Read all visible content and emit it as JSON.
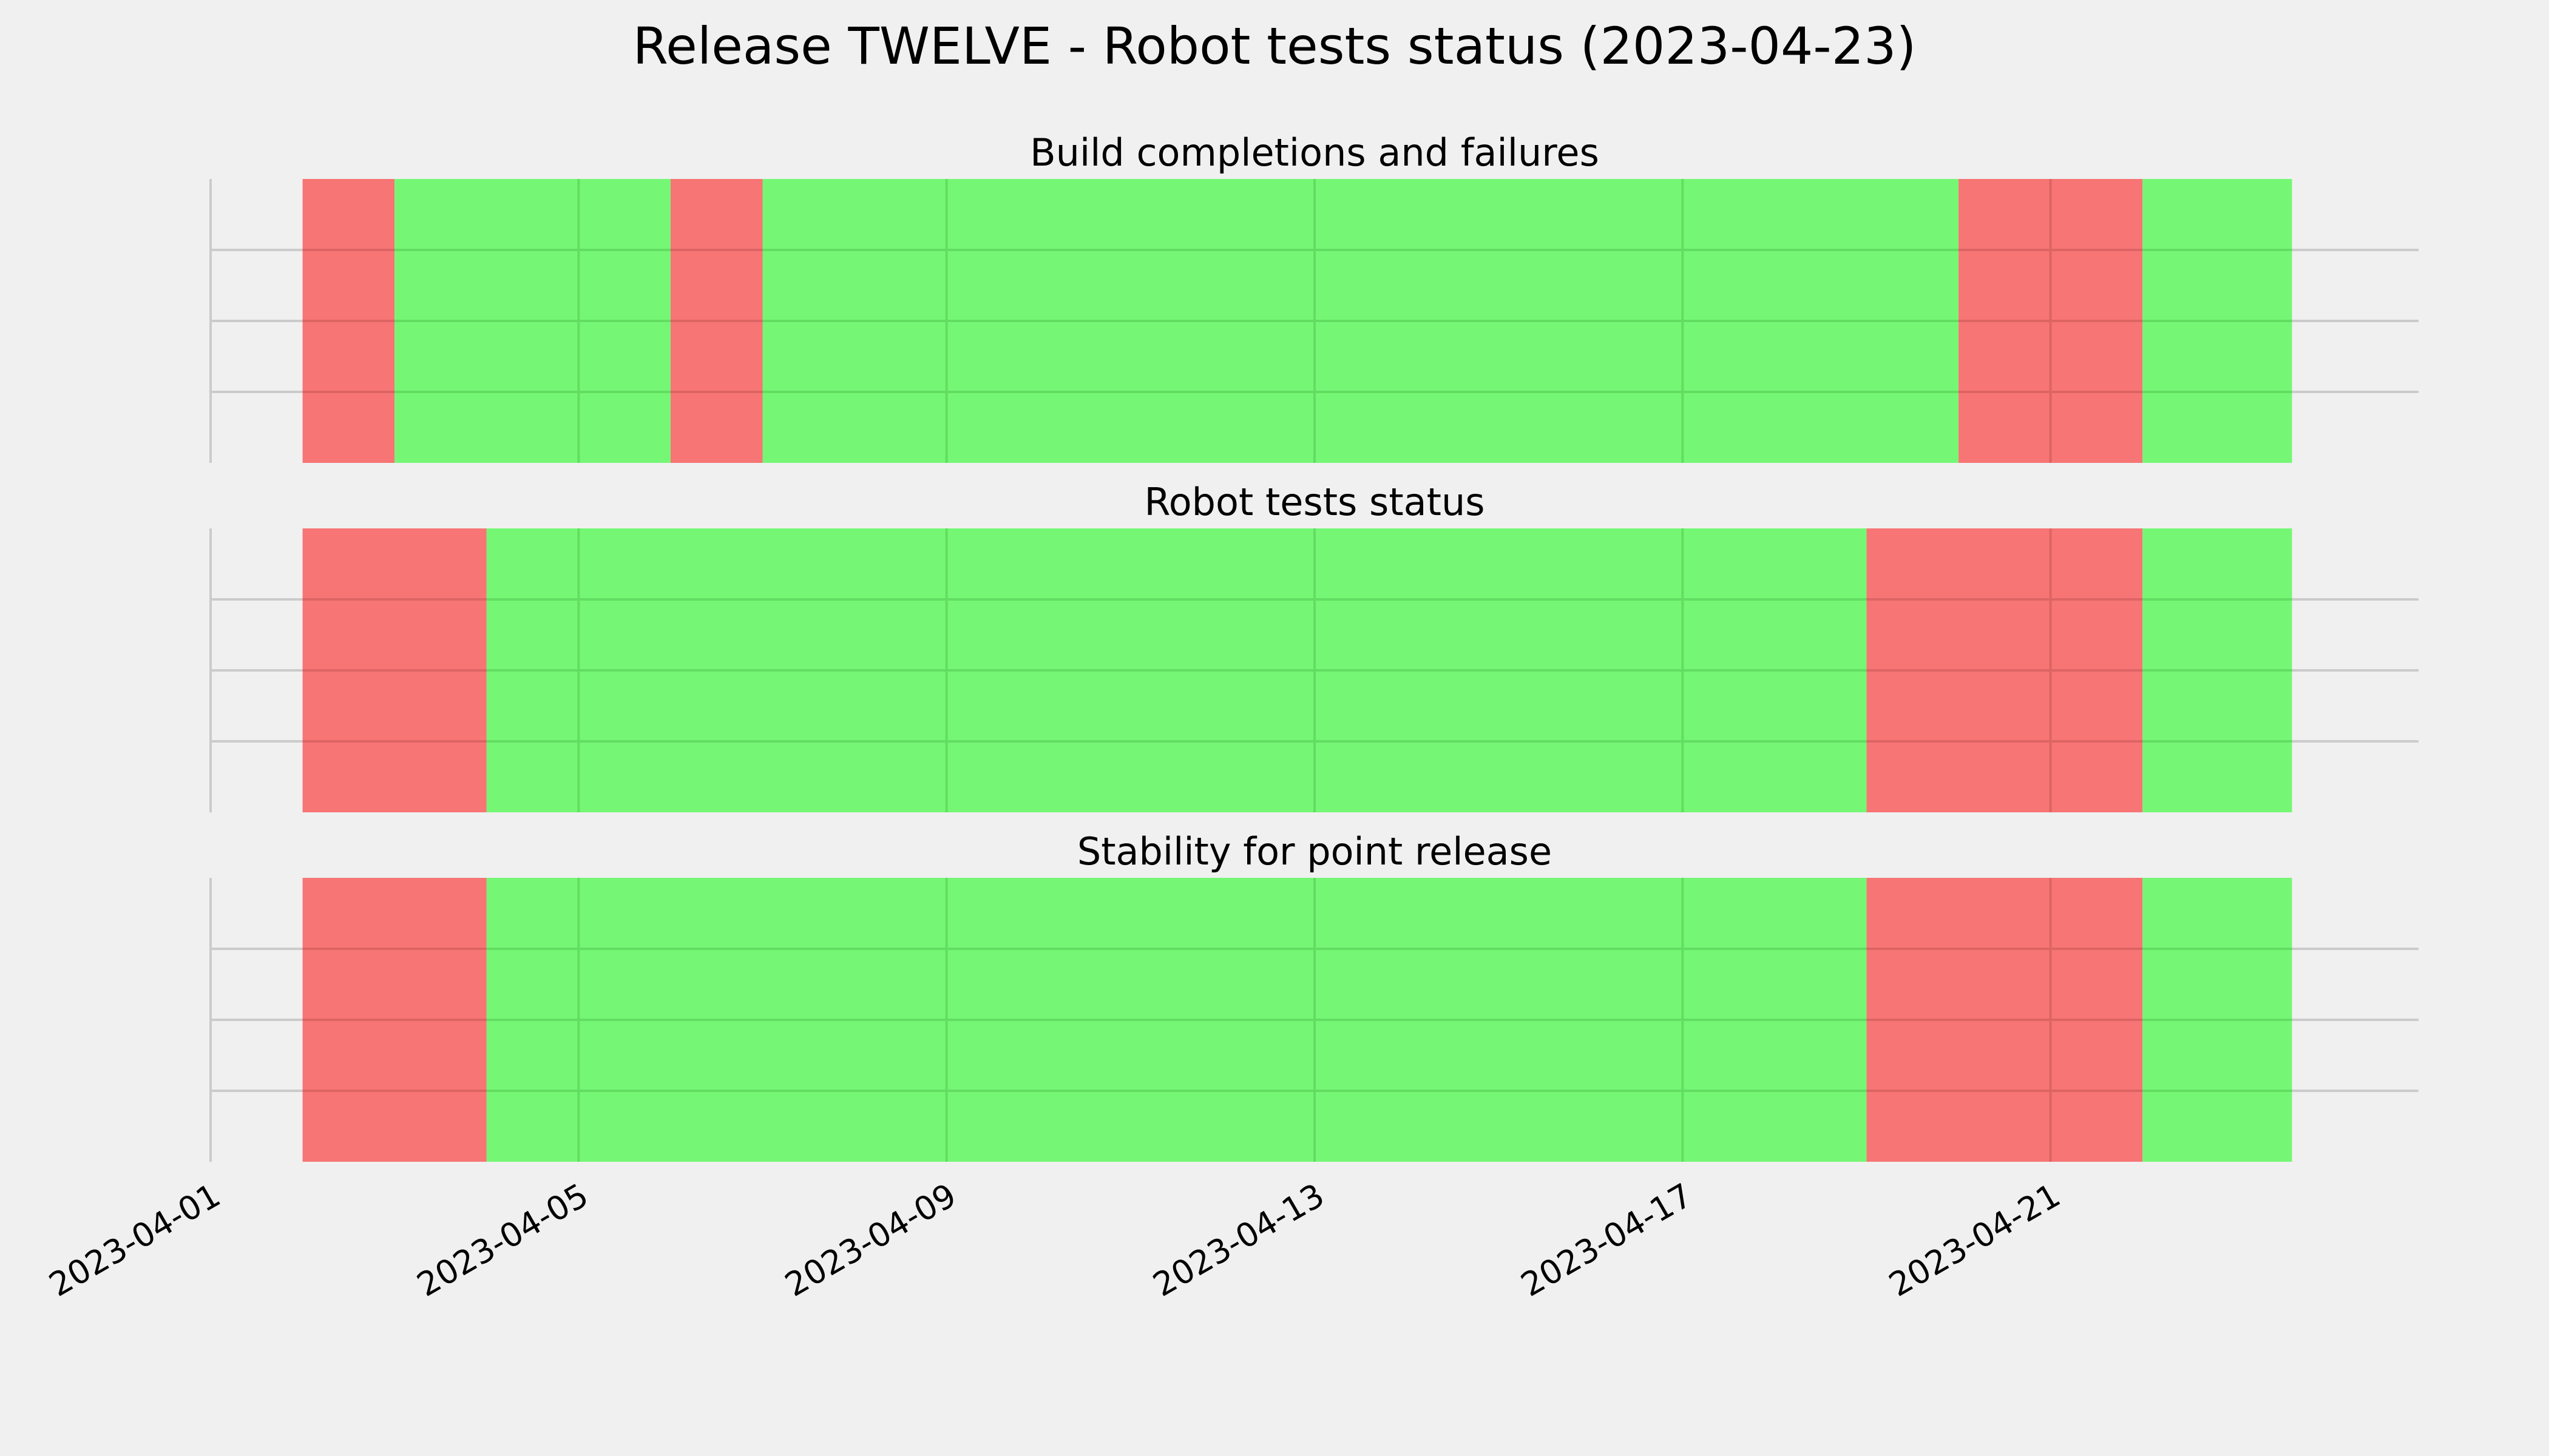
{
  "figure": {
    "title": "Release TWELVE - Robot tests status (2023-04-23)",
    "background_color": "#f0f0f0"
  },
  "colors": {
    "pass": "#75f775",
    "fail": "#f77575",
    "pass_gridline": "#62dd62",
    "fail_gridline": "#de6464",
    "gridline": "#cbcbcb"
  },
  "chart_data": [
    {
      "type": "area",
      "title": "Build completions and failures",
      "xlabel": "",
      "ylabel": "",
      "x_axis": "date",
      "xlim": [
        "2023-04-01",
        "2023-04-25"
      ],
      "grid": true,
      "x_tick_labels_shown": false,
      "segments": [
        {
          "start": "2023-04-02",
          "end": "2023-04-03",
          "status": "fail"
        },
        {
          "start": "2023-04-03",
          "end": "2023-04-06",
          "status": "pass"
        },
        {
          "start": "2023-04-06",
          "end": "2023-04-07",
          "status": "fail"
        },
        {
          "start": "2023-04-07",
          "end": "2023-04-20",
          "status": "pass"
        },
        {
          "start": "2023-04-20",
          "end": "2023-04-22",
          "status": "fail"
        },
        {
          "start": "2023-04-22",
          "end": "2023-04-23 15:00",
          "status": "pass"
        }
      ]
    },
    {
      "type": "area",
      "title": "Robot tests status",
      "xlabel": "",
      "ylabel": "",
      "x_axis": "date",
      "xlim": [
        "2023-04-01",
        "2023-04-25"
      ],
      "grid": true,
      "x_tick_labels_shown": false,
      "segments": [
        {
          "start": "2023-04-02",
          "end": "2023-04-04",
          "status": "fail"
        },
        {
          "start": "2023-04-04",
          "end": "2023-04-19",
          "status": "pass"
        },
        {
          "start": "2023-04-19",
          "end": "2023-04-22",
          "status": "fail"
        },
        {
          "start": "2023-04-22",
          "end": "2023-04-23 15:00",
          "status": "pass"
        }
      ]
    },
    {
      "type": "area",
      "title": "Stability for point release",
      "xlabel": "",
      "ylabel": "",
      "x_axis": "date",
      "xlim": [
        "2023-04-01",
        "2023-04-25"
      ],
      "grid": true,
      "x_tick_labels_shown": true,
      "x_tick_labels": [
        "2023-04-01",
        "2023-04-05",
        "2023-04-09",
        "2023-04-13",
        "2023-04-17",
        "2023-04-21"
      ],
      "segments": [
        {
          "start": "2023-04-02",
          "end": "2023-04-04",
          "status": "fail"
        },
        {
          "start": "2023-04-04",
          "end": "2023-04-19",
          "status": "pass"
        },
        {
          "start": "2023-04-19",
          "end": "2023-04-22",
          "status": "fail"
        },
        {
          "start": "2023-04-22",
          "end": "2023-04-23 15:00",
          "status": "pass"
        }
      ]
    }
  ]
}
